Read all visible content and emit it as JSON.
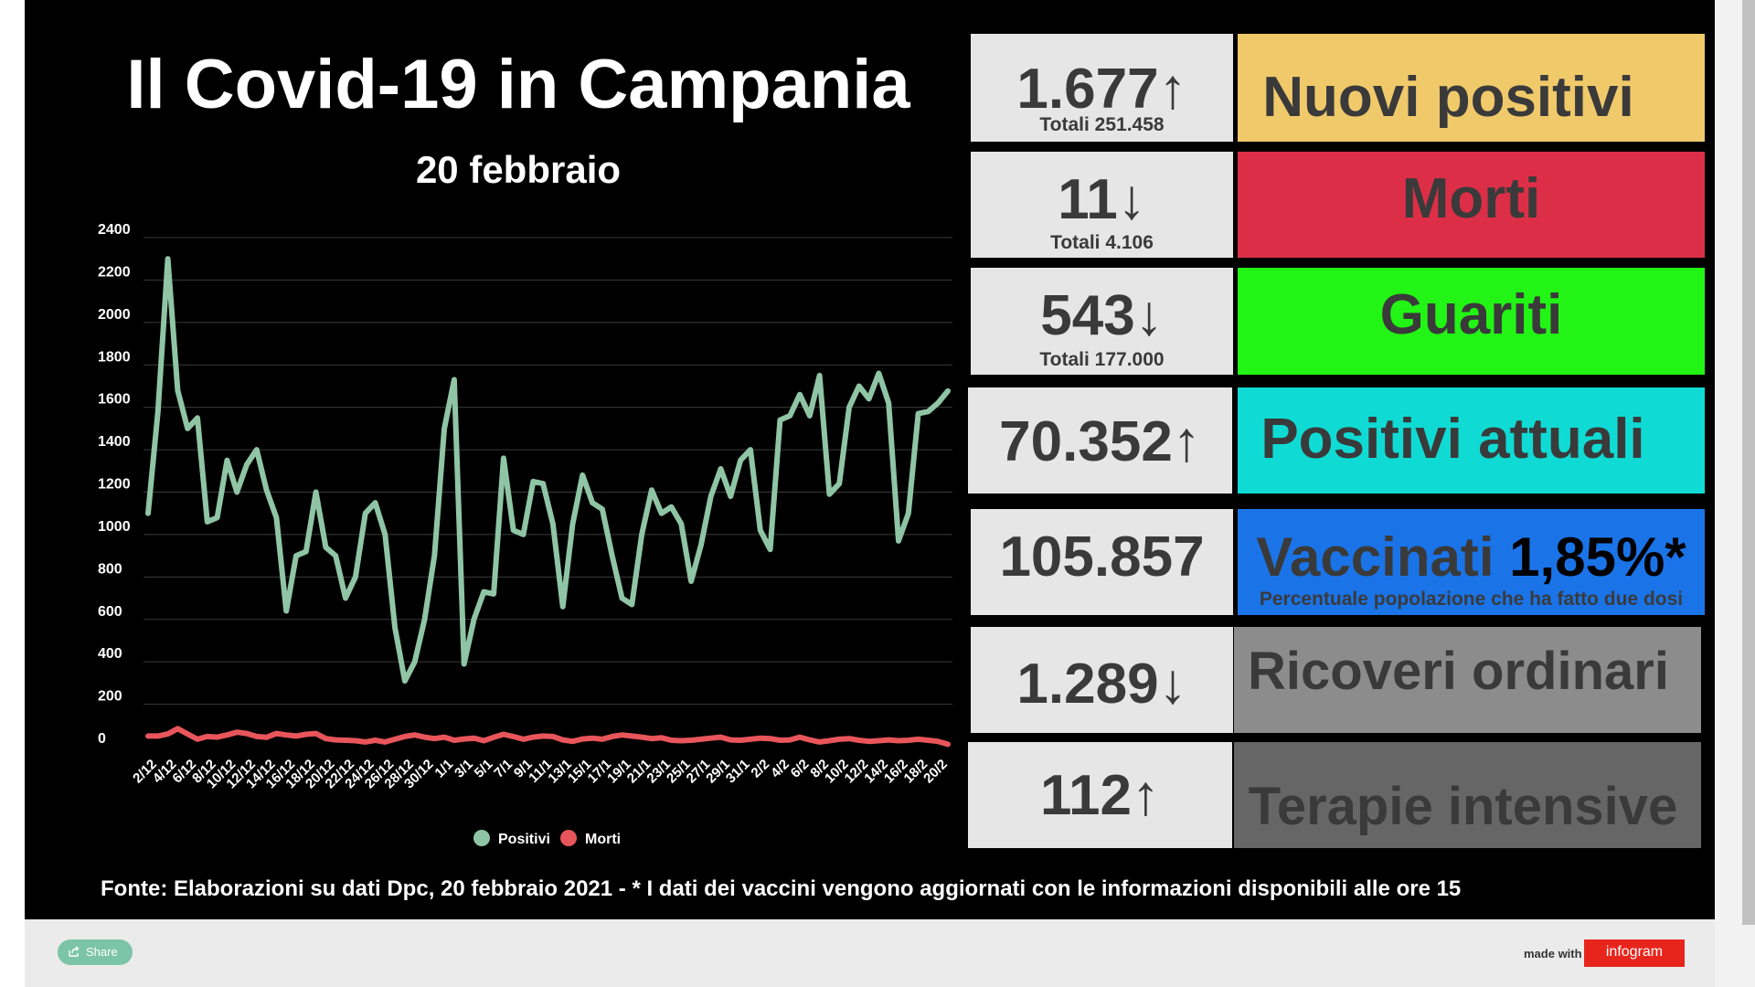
{
  "header": {
    "title": "Il Covid-19 in Campania",
    "date": "20 febbraio"
  },
  "chart_data": {
    "type": "line",
    "ylim": [
      0,
      2400
    ],
    "y_ticks": [
      "2400",
      "2200",
      "2000",
      "1800",
      "1600",
      "1400",
      "1200",
      "1000",
      "800",
      "600",
      "400",
      "200",
      "0"
    ],
    "grid": true,
    "legend_position": "bottom",
    "x_tick_labels": [
      "2/12",
      "4/12",
      "6/12",
      "8/12",
      "10/12",
      "12/12",
      "14/12",
      "16/12",
      "18/12",
      "20/12",
      "22/12",
      "24/12",
      "26/12",
      "28/12",
      "30/12",
      "1/1",
      "3/1",
      "5/1",
      "7/1",
      "9/1",
      "11/1",
      "13/1",
      "15/1",
      "17/1",
      "19/1",
      "21/1",
      "23/1",
      "25/1",
      "27/1",
      "29/1",
      "31/1",
      "2/2",
      "4/2",
      "6/2",
      "8/2",
      "10/2",
      "12/2",
      "14/2",
      "16/2",
      "18/2",
      "20/2"
    ],
    "series": [
      {
        "name": "Positivi",
        "color": "#8fc5a5",
        "values": [
          1100,
          1580,
          2300,
          1680,
          1500,
          1550,
          1060,
          1080,
          1350,
          1200,
          1330,
          1400,
          1210,
          1080,
          640,
          900,
          920,
          1200,
          940,
          900,
          700,
          800,
          1100,
          1150,
          1000,
          560,
          310,
          400,
          600,
          900,
          1500,
          1730,
          390,
          600,
          730,
          720,
          1360,
          1020,
          1000,
          1250,
          1240,
          1050,
          660,
          1050,
          1280,
          1150,
          1120,
          900,
          700,
          670,
          1000,
          1210,
          1100,
          1130,
          1050,
          780,
          950,
          1180,
          1310,
          1180,
          1350,
          1400,
          1020,
          930,
          1540,
          1560,
          1660,
          1560,
          1750,
          1190,
          1240,
          1600,
          1700,
          1640,
          1760,
          1620,
          970,
          1100,
          1570,
          1580,
          1620,
          1677
        ]
      },
      {
        "name": "Morti",
        "color": "#e8555a",
        "values": [
          50,
          50,
          60,
          85,
          60,
          35,
          48,
          45,
          55,
          68,
          62,
          48,
          44,
          62,
          55,
          50,
          58,
          62,
          38,
          32,
          30,
          28,
          22,
          30,
          22,
          35,
          48,
          55,
          45,
          38,
          45,
          30,
          36,
          40,
          28,
          44,
          58,
          48,
          35,
          45,
          50,
          48,
          32,
          25,
          36,
          40,
          35,
          48,
          55,
          50,
          45,
          38,
          42,
          30,
          28,
          30,
          35,
          40,
          45,
          32,
          30,
          35,
          40,
          38,
          30,
          32,
          45,
          32,
          22,
          28,
          35,
          38,
          30,
          25,
          28,
          32,
          28,
          30,
          35,
          30,
          25,
          11
        ]
      }
    ]
  },
  "stats": [
    {
      "value": "1.677↑",
      "total": "Totali 251.458",
      "label": "Nuovi positivi",
      "color": "#f0c96a"
    },
    {
      "value": "11↓",
      "total": "Totali 4.106",
      "label": "Morti",
      "color": "#dc2f47"
    },
    {
      "value": "543↓",
      "total": "Totali 177.000",
      "label": "Guariti",
      "color": "#22f515"
    },
    {
      "value": "70.352↑",
      "label": "Positivi attuali",
      "color": "#0fdbd4"
    },
    {
      "value": "105.857",
      "label": "Vaccinati",
      "label_highlight": "1,85%*",
      "note": "Percentuale popolazione che ha fatto due dosi",
      "color": "#1a74e8"
    },
    {
      "value": "1.289↓",
      "label": "Ricoveri ordinari",
      "color": "#8c8c8c"
    },
    {
      "value": "112↑",
      "label": "Terapie intensive",
      "color": "#666666"
    }
  ],
  "source": "Fonte: Elaborazioni su dati Dpc, 20 febbraio 2021 - * I dati dei vaccini vengono aggiornati con le informazioni disponibili alle ore 15",
  "footer": {
    "share_label": "Share",
    "made_with": "made with",
    "brand": "infogram"
  }
}
